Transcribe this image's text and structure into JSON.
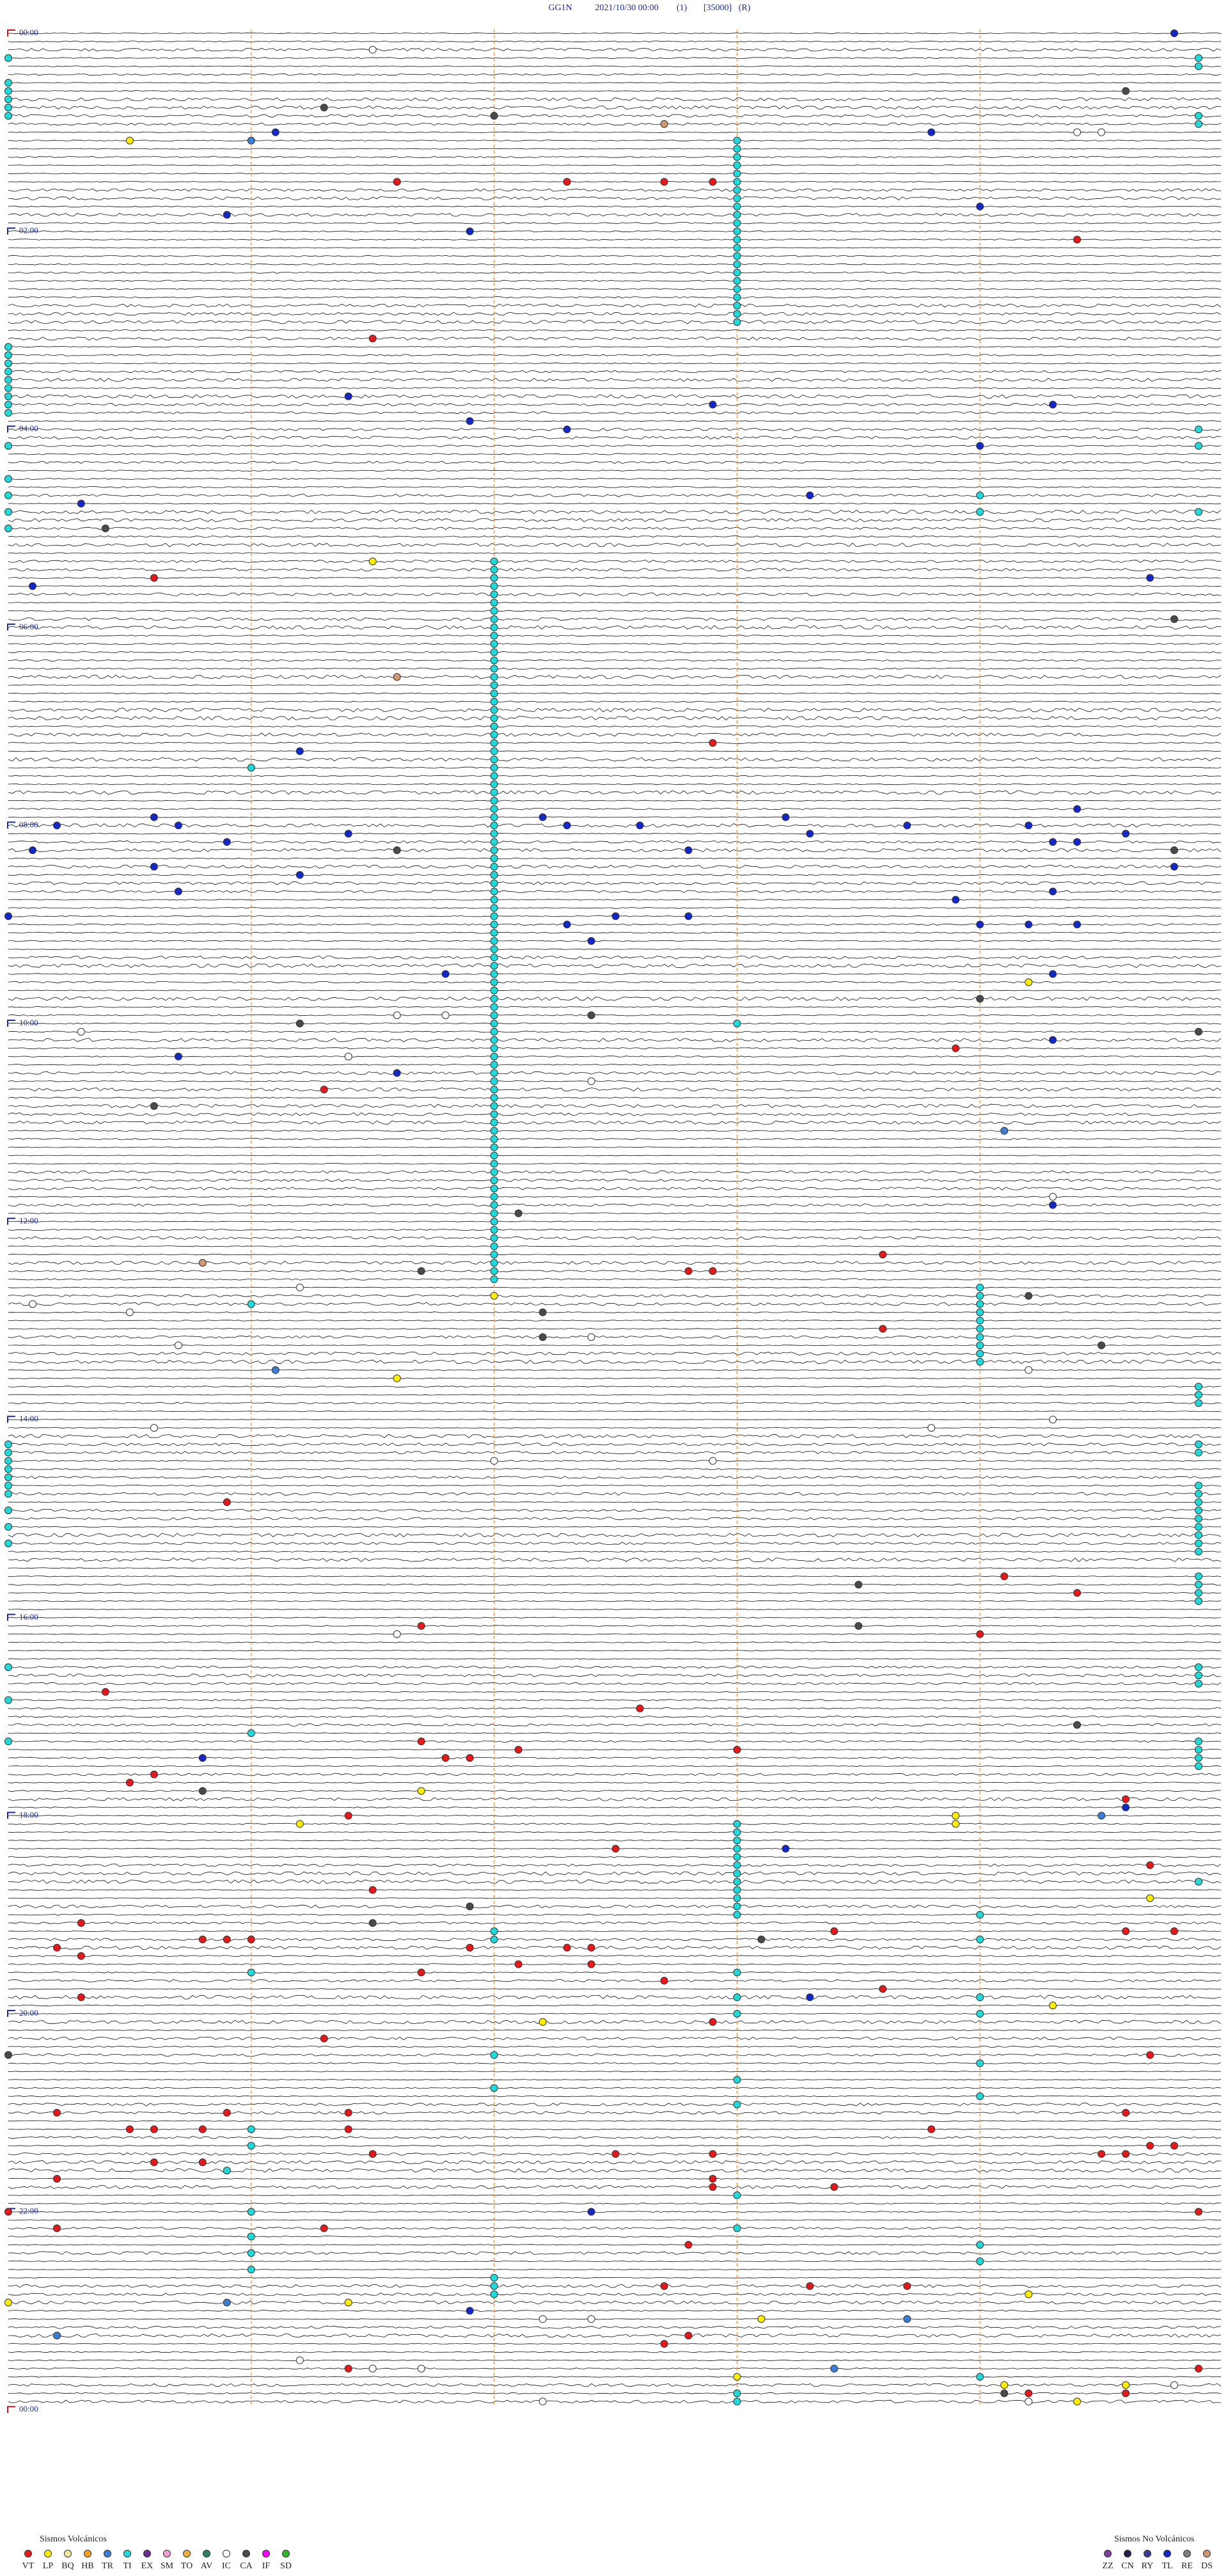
{
  "header": {
    "station": "GG1N",
    "datetime": "2021/10/30 00:00",
    "channel": "(1)",
    "scale": "[35000]",
    "mode": "(R)"
  },
  "helicorder": {
    "type": "helicorder",
    "xlim": [
      0,
      1440
    ],
    "row_minutes": 5,
    "time_ticks": [
      {
        "value": 0,
        "label": "00:00"
      },
      {
        "value": 120,
        "label": "02:00"
      },
      {
        "value": 240,
        "label": "04:00"
      },
      {
        "value": 360,
        "label": "06:00"
      },
      {
        "value": 480,
        "label": "08:00"
      },
      {
        "value": 600,
        "label": "10:00"
      },
      {
        "value": 720,
        "label": "12:00"
      },
      {
        "value": 840,
        "label": "14:00"
      },
      {
        "value": 960,
        "label": "16:00"
      },
      {
        "value": 1080,
        "label": "18:00"
      },
      {
        "value": 1200,
        "label": "20:00"
      },
      {
        "value": 1320,
        "label": "22:00"
      },
      {
        "value": 1440,
        "label": "00:00"
      }
    ]
  },
  "legend": {
    "volcanic_title": "Sismos Volcánicos",
    "volcanic": [
      {
        "code": "VT",
        "color": "#e31a1c"
      },
      {
        "code": "LP",
        "color": "#ffee00"
      },
      {
        "code": "BQ",
        "color": "#f3e79a"
      },
      {
        "code": "HB",
        "color": "#f4a020"
      },
      {
        "code": "TR",
        "color": "#3a7fd5"
      },
      {
        "code": "TI",
        "color": "#22d8d8"
      },
      {
        "code": "EX",
        "color": "#6a2c91"
      },
      {
        "code": "SM",
        "color": "#f0a0d8"
      },
      {
        "code": "TO",
        "color": "#f0b040"
      },
      {
        "code": "AV",
        "color": "#2f7f6f"
      },
      {
        "code": "IC",
        "color": "#ffffff"
      },
      {
        "code": "CA",
        "color": "#4a4a4a"
      },
      {
        "code": "IF",
        "color": "#ff00ff"
      },
      {
        "code": "SD",
        "color": "#2db82d"
      }
    ],
    "non_volcanic_title": "Sismos No Volcánicos",
    "non_volcanic": [
      {
        "code": "ZZ",
        "color": "#7b3fa0"
      },
      {
        "code": "CN",
        "color": "#2a1a50"
      },
      {
        "code": "RY",
        "color": "#3a3a90"
      },
      {
        "code": "TL",
        "color": "#1428c8"
      },
      {
        "code": "RE",
        "color": "#808080"
      },
      {
        "code": "DS",
        "color": "#d09870"
      }
    ]
  },
  "events": {
    "TL": [
      4.8,
      61.1,
      63.8,
      110.9,
      109.0,
      121.9,
      221.4,
      227.9,
      229.3,
      236.9,
      242.3,
      254.0,
      283.3,
      285.3,
      335.1,
      334.7,
      436.2,
      475.6,
      480.2,
      480.7,
      477.2,
      482.3,
      482.6,
      478.2,
      483.7,
      484.2,
      474.4,
      488.3,
      486.4,
      489.6,
      490.9,
      494.3,
      494.4,
      495.1,
      497.8,
      505.6,
      509.8,
      511.2,
      512.0,
      520.7,
      524.3,
      528.9,
      535.0,
      537.5,
      537.8,
      542.3,
      544.0,
      544.2,
      544.4,
      552.4,
      571.8,
      574.3,
      614.3,
      620.7,
      631.6,
      714.3,
      1045.8,
      1079.6,
      1103.2,
      1193.3,
      1322.4,
      1381.9
    ],
    "VT": [
      91.6,
      92.3,
      92.7,
      92.9,
      129.4,
      186.5,
      330.6,
      332.0,
      432.9,
      618.9,
      641.3,
      743.6,
      752.8,
      752.9,
      788.6,
      890.9,
      939.1,
      949.4,
      966.7,
      974.0,
      1005.4,
      1017.6,
      1036.7,
      1042.1,
      1043.0,
      1046.8,
      1046.9,
      1055.6,
      1060.5,
      1074.6,
      1081.4,
      1102.5,
      1114.7,
      1126.5,
      1145.3,
      1153.4,
      1154.6,
      1154.8,
      1155.8,
      1155.9,
      1156.0,
      1160.2,
      1161.9,
      1162.3,
      1162.4,
      1165.3,
      1172.1,
      1172.4,
      1176.7,
      1182.7,
      1188.6,
      1190.3,
      1207.9,
      1216.3,
      1229.7,
      1260.2,
      1260.9,
      1261.4,
      1264.6,
      1270.5,
      1270.6,
      1270.8,
      1271.4,
      1273.8,
      1284.7,
      1284.8,
      1290.6,
      1290.8,
      1286.5,
      1287.5,
      1287.9,
      1289.5,
      1289.6,
      1300.2,
      1302.9,
      1307.9,
      1308.4,
      1324.9,
      1320.0,
      1330.2,
      1331.3,
      1342.8,
      1367.7,
      1368.3,
      1368.7,
      1397.8,
      1402.7,
      1416.4,
      1419.9,
      1434.2,
      1434.6
    ],
    "LP": [
      65.5,
      321.5,
      579.2,
      767.0,
      816.6,
      1066.7,
      1083.9,
      1088.9,
      1086.2,
      1134.7,
      1199.3,
      1207.2,
      1375.0,
      1374.2,
      1376.4,
      1388.1,
      1423.0,
      1429.1,
      1429.6,
      1439.4
    ],
    "TR": [
      66.0,
      669.1,
      811.1,
      1084.5,
      1375.9,
      1388.7,
      1395.2,
      1418.4
    ],
    "CA": [
      39.6,
      46.3,
      52.0,
      300.4,
      359.8,
      496.6,
      499.8,
      589.0,
      597.4,
      601.2,
      609.9,
      650.6,
      717.1,
      751.7,
      769.2,
      777.2,
      792.2,
      799.5,
      943.5,
      968.5,
      1029.4,
      1065.8,
      1136.9,
      1146.5,
      1158.1,
      1225.0,
      1434.1
    ],
    "IC": [
      11.5,
      64.4,
      64.5,
      596.6,
      596.8,
      605.3,
      621.4,
      637.4,
      709.3,
      761.2,
      770.1,
      775.5,
      792.4,
      795.7,
      814.2,
      844.3,
      845.6,
      848.8,
      867.0,
      867.9,
      971.6,
      1387.2,
      1387.4,
      1411.2,
      1416.5,
      1416.7,
      1429.8,
      1439.2,
      1437.2
    ],
    "DS": [
      57.7,
      391.6,
      745.8
    ],
    "TI": [
      15,
      30,
      35,
      40,
      45,
      50,
      190,
      195,
      200,
      205,
      210,
      215,
      220,
      225,
      230,
      250,
      270,
      280,
      290,
      300,
      855,
      860,
      865,
      870,
      875,
      880,
      885,
      895,
      905,
      915,
      990,
      1010,
      1035,
      19.9,
      24.9,
      54.9,
      59.9,
      244.9,
      254.9,
      294.9,
      824.9,
      829.9,
      834.9,
      859.9,
      864.9,
      884.9,
      889.9,
      894.9,
      899.9,
      904.9,
      909.9,
      914.9,
      919.9,
      924.9,
      939.9,
      944.9,
      949.9,
      954.9,
      994.9,
      999.9,
      1004.9,
      1039.9,
      1044.9,
      1049.9,
      1054.9,
      1124.9,
      68,
      73,
      78,
      83,
      88,
      93,
      98,
      103,
      108,
      113,
      118,
      123,
      128,
      133,
      138,
      143,
      148,
      153,
      158,
      163,
      168,
      173,
      178,
      322,
      327,
      332,
      337,
      342,
      347,
      352,
      357,
      362,
      367,
      372,
      377,
      382,
      387,
      392,
      397,
      402,
      407,
      412,
      417,
      422,
      427,
      432,
      437,
      442,
      447,
      452,
      457,
      462,
      467,
      472,
      477,
      482,
      487,
      492,
      497,
      502,
      507,
      512,
      517,
      522,
      527,
      532,
      537,
      542,
      547,
      552,
      557,
      562,
      567,
      572,
      577,
      582,
      587,
      592,
      597,
      602,
      607,
      612,
      617,
      622,
      627,
      632,
      637,
      642,
      647,
      652,
      657,
      662,
      667,
      672,
      677,
      682,
      687,
      692,
      697,
      702,
      707,
      712,
      717,
      722,
      727,
      732,
      737,
      742,
      747,
      752,
      757,
      603.0,
      446.0,
      284.0,
      294.0,
      764,
      769,
      774,
      779,
      784,
      789,
      794,
      799,
      804,
      809,
      771.0,
      1088,
      1093,
      1098,
      1103,
      1108,
      1113,
      1118,
      1123,
      1128,
      1133,
      1138,
      1143,
      1031.0,
      1144.0,
      1152.0,
      1157.0,
      1159.0,
      1176.0,
      1178.0,
      1193.0,
      1194.0,
      1204.0,
      1203.0,
      1227.0,
      1234.0,
      1254.0,
      1243.0,
      1258.0,
      1247.0,
      1271.0,
      1281.0,
      1295.9,
      1313.0,
      1321.0,
      1333.0,
      1336.0,
      1346.0,
      1356.0,
      1344.0,
      1354.0,
      1362.0,
      1367.0,
      1372.0,
      1424.0,
      1433.0,
      1438.0
    ]
  }
}
